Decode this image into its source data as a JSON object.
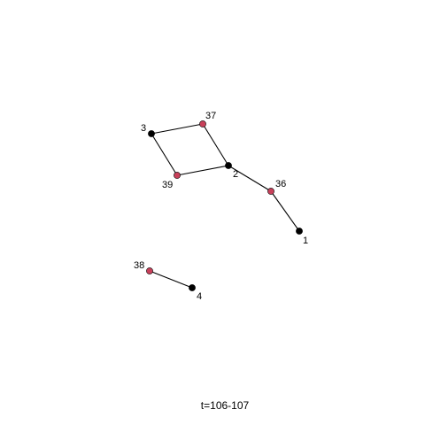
{
  "caption": "t=106-107",
  "colors": {
    "background": "#ffffff",
    "edge": "#000000",
    "node_black": "#000000",
    "node_red": "#c8405a"
  },
  "nodes": [
    {
      "id": "1",
      "label": "1",
      "color": "black"
    },
    {
      "id": "2",
      "label": "2",
      "color": "black"
    },
    {
      "id": "3",
      "label": "3",
      "color": "black"
    },
    {
      "id": "4",
      "label": "4",
      "color": "black"
    },
    {
      "id": "36",
      "label": "36",
      "color": "red"
    },
    {
      "id": "37",
      "label": "37",
      "color": "red"
    },
    {
      "id": "38",
      "label": "38",
      "color": "red"
    },
    {
      "id": "39",
      "label": "39",
      "color": "red"
    }
  ],
  "edges": [
    {
      "source": "3",
      "target": "37"
    },
    {
      "source": "3",
      "target": "39"
    },
    {
      "source": "37",
      "target": "2"
    },
    {
      "source": "39",
      "target": "2"
    },
    {
      "source": "2",
      "target": "36"
    },
    {
      "source": "36",
      "target": "1"
    },
    {
      "source": "38",
      "target": "4"
    }
  ]
}
